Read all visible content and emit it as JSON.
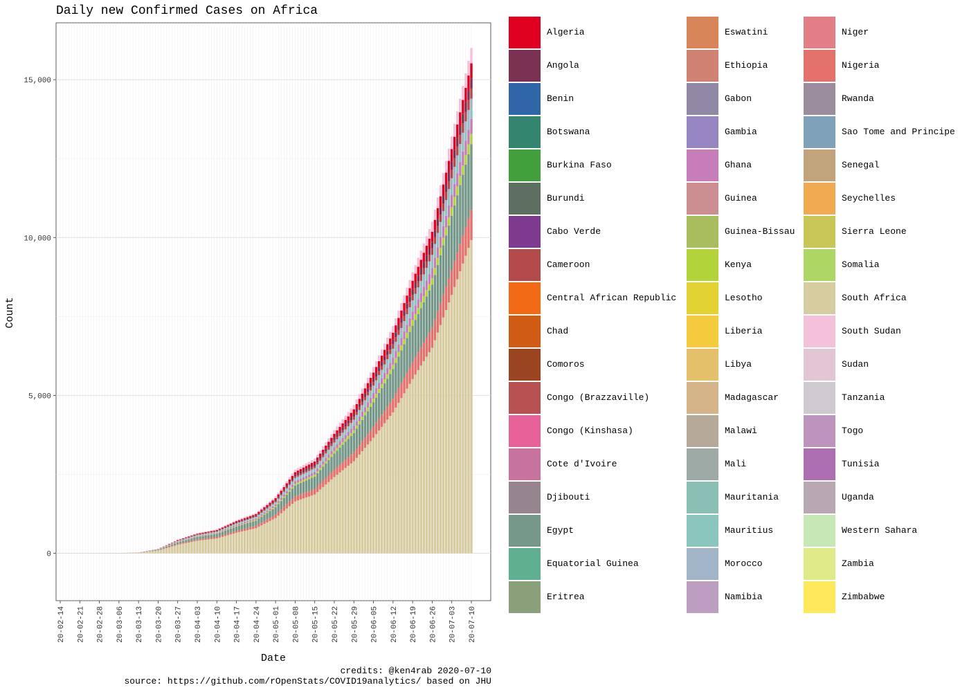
{
  "chart_data": {
    "type": "bar",
    "stacked": true,
    "title": "Daily new Confirmed Cases on Africa",
    "xlabel": "Date",
    "ylabel": "Count",
    "ylim": [
      -1500,
      16800
    ],
    "yticks": [
      0,
      5000,
      10000,
      15000
    ],
    "ytick_labels": [
      "0",
      "5,000",
      "10,000",
      "15,000"
    ],
    "x_start": "2020-02-14",
    "x_end": "2020-07-10",
    "xtick_labels": [
      "20-02-14",
      "20-02-21",
      "20-02-28",
      "20-03-06",
      "20-03-13",
      "20-03-20",
      "20-03-27",
      "20-04-03",
      "20-04-10",
      "20-04-17",
      "20-04-24",
      "20-05-01",
      "20-05-08",
      "20-05-15",
      "20-05-22",
      "20-05-29",
      "20-06-05",
      "20-06-12",
      "20-06-19",
      "20-06-26",
      "20-07-03",
      "20-07-10"
    ],
    "totals_by_date": [
      [
        "2020-02-14",
        1
      ],
      [
        "2020-03-06",
        8
      ],
      [
        "2020-03-13",
        25
      ],
      [
        "2020-03-20",
        140
      ],
      [
        "2020-03-27",
        430
      ],
      [
        "2020-04-03",
        640
      ],
      [
        "2020-04-10",
        760
      ],
      [
        "2020-04-17",
        1050
      ],
      [
        "2020-04-24",
        1280
      ],
      [
        "2020-05-01",
        1800
      ],
      [
        "2020-05-08",
        2650
      ],
      [
        "2020-05-15",
        3000
      ],
      [
        "2020-05-22",
        3900
      ],
      [
        "2020-05-29",
        4700
      ],
      [
        "2020-06-05",
        5900
      ],
      [
        "2020-06-12",
        7200
      ],
      [
        "2020-06-19",
        8900
      ],
      [
        "2020-06-26",
        10500
      ],
      [
        "2020-07-03",
        13200
      ],
      [
        "2020-07-10",
        16000
      ]
    ],
    "series_share": [
      {
        "name": "South Africa",
        "share": 0.62
      },
      {
        "name": "Nigeria",
        "share": 0.06
      },
      {
        "name": "Egypt",
        "share": 0.13
      },
      {
        "name": "Kenya",
        "share": 0.02
      },
      {
        "name": "Ghana",
        "share": 0.03
      },
      {
        "name": "Mauritius",
        "share": 0.02
      },
      {
        "name": "Morocco",
        "share": 0.02
      },
      {
        "name": "Cameroon",
        "share": 0.02
      },
      {
        "name": "Angola",
        "share": 0.02
      },
      {
        "name": "Algeria",
        "share": 0.03
      },
      {
        "name": "South Sudan",
        "share": 0.03
      }
    ],
    "legend_position": "right",
    "legend": [
      {
        "name": "Algeria",
        "color": "#E0001F"
      },
      {
        "name": "Angola",
        "color": "#7B3152"
      },
      {
        "name": "Benin",
        "color": "#2E66A8"
      },
      {
        "name": "Botswana",
        "color": "#348570"
      },
      {
        "name": "Burkina Faso",
        "color": "#41A03C"
      },
      {
        "name": "Burundi",
        "color": "#5C6F60"
      },
      {
        "name": "Cabo Verde",
        "color": "#7E3A8E"
      },
      {
        "name": "Cameroon",
        "color": "#B24A4A"
      },
      {
        "name": "Central African Republic",
        "color": "#F26A15"
      },
      {
        "name": "Chad",
        "color": "#D05B14"
      },
      {
        "name": "Comoros",
        "color": "#9A4520"
      },
      {
        "name": "Congo (Brazzaville)",
        "color": "#B85252"
      },
      {
        "name": "Congo (Kinshasa)",
        "color": "#E8629A"
      },
      {
        "name": "Cote d'Ivoire",
        "color": "#C8739E"
      },
      {
        "name": "Djibouti",
        "color": "#96858E"
      },
      {
        "name": "Egypt",
        "color": "#76988A"
      },
      {
        "name": "Equatorial Guinea",
        "color": "#5EB090"
      },
      {
        "name": "Eritrea",
        "color": "#8AA07A"
      },
      {
        "name": "Eswatini",
        "color": "#D9855A"
      },
      {
        "name": "Ethiopia",
        "color": "#CF8272"
      },
      {
        "name": "Gabon",
        "color": "#9088A4"
      },
      {
        "name": "Gambia",
        "color": "#9886C2"
      },
      {
        "name": "Ghana",
        "color": "#C77DBA"
      },
      {
        "name": "Guinea",
        "color": "#CC8E91"
      },
      {
        "name": "Guinea-Bissau",
        "color": "#A8BE5E"
      },
      {
        "name": "Kenya",
        "color": "#B2D33A"
      },
      {
        "name": "Lesotho",
        "color": "#E2D232"
      },
      {
        "name": "Liberia",
        "color": "#F3CB3C"
      },
      {
        "name": "Libya",
        "color": "#E5C06A"
      },
      {
        "name": "Madagascar",
        "color": "#D5B48A"
      },
      {
        "name": "Malawi",
        "color": "#B5AA9A"
      },
      {
        "name": "Mali",
        "color": "#9DAAA6"
      },
      {
        "name": "Mauritania",
        "color": "#8BBEB4"
      },
      {
        "name": "Mauritius",
        "color": "#8AC5BE"
      },
      {
        "name": "Morocco",
        "color": "#A2B5C8"
      },
      {
        "name": "Namibia",
        "color": "#BC9EC0"
      },
      {
        "name": "Niger",
        "color": "#E27E86"
      },
      {
        "name": "Nigeria",
        "color": "#E3716C"
      },
      {
        "name": "Rwanda",
        "color": "#9C8D9E"
      },
      {
        "name": "Sao Tome and Principe",
        "color": "#80A2B8"
      },
      {
        "name": "Senegal",
        "color": "#C2A47C"
      },
      {
        "name": "Seychelles",
        "color": "#F0AA52"
      },
      {
        "name": "Sierra Leone",
        "color": "#C8C656"
      },
      {
        "name": "Somalia",
        "color": "#AED664"
      },
      {
        "name": "South Africa",
        "color": "#D7CBA0"
      },
      {
        "name": "South Sudan",
        "color": "#F5C0DA"
      },
      {
        "name": "Sudan",
        "color": "#E2C6D4"
      },
      {
        "name": "Tanzania",
        "color": "#CFC9D0"
      },
      {
        "name": "Togo",
        "color": "#BC94BE"
      },
      {
        "name": "Tunisia",
        "color": "#AE6EB2"
      },
      {
        "name": "Uganda",
        "color": "#B7A8B2"
      },
      {
        "name": "Western Sahara",
        "color": "#C5E8B6"
      },
      {
        "name": "Zambia",
        "color": "#E0EA88"
      },
      {
        "name": "Zimbabwe",
        "color": "#FEE95C"
      }
    ],
    "grid": true
  },
  "captions": {
    "credits": "credits:  @ken4rab 2020-07-10",
    "source": "source: https://github.com/rOpenStats/COVID19analytics/ based on JHU"
  }
}
